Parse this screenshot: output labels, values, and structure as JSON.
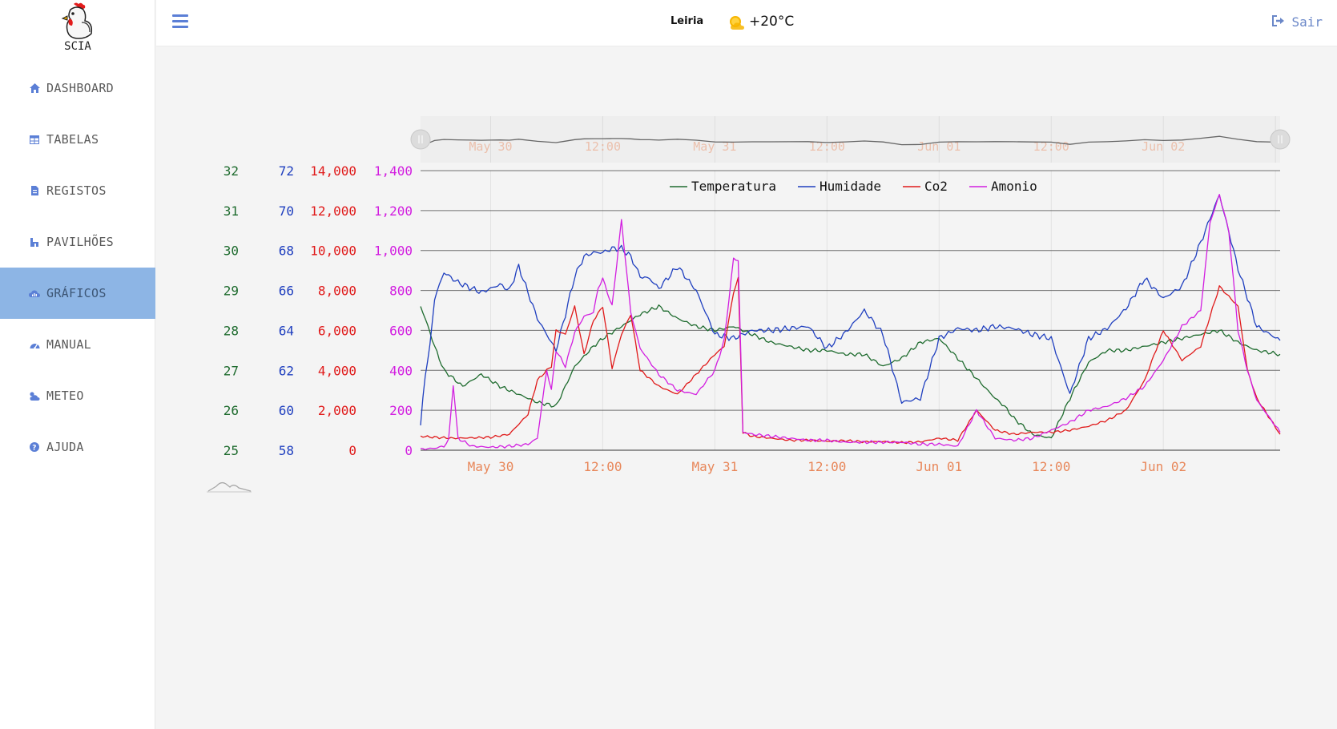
{
  "app": {
    "name": "SCIA"
  },
  "sidebar": {
    "items": [
      {
        "label": "DASHBOARD",
        "icon": "home-icon"
      },
      {
        "label": "TABELAS",
        "icon": "table-icon"
      },
      {
        "label": "REGISTOS",
        "icon": "records-icon"
      },
      {
        "label": "PAVILHÕES",
        "icon": "building-icon"
      },
      {
        "label": "GRÁFICOS",
        "icon": "cloud-chart-icon",
        "active": true
      },
      {
        "label": "MANUAL",
        "icon": "tachometer-icon"
      },
      {
        "label": "METEO",
        "icon": "weather-icon"
      },
      {
        "label": "AJUDA",
        "icon": "question-icon"
      }
    ]
  },
  "header": {
    "city": "Leiria",
    "temperature": "+20°C",
    "weather_icon": "sun-cloud-icon",
    "logout_label": "Sair"
  },
  "colors": {
    "accent": "#5b7fd6",
    "active_nav": "#8db5e5",
    "temperatura": "#1e6b2e",
    "humidade": "#1f3fbf",
    "co2": "#e01a1a",
    "amonio": "#d21ee0",
    "time_label": "#e8875a"
  },
  "chart_data": {
    "type": "line",
    "legend": [
      "Temperatura",
      "Humidade",
      "Co2",
      "Amonio"
    ],
    "legend_position": "top-center",
    "x_ticks": [
      "May 30",
      "12:00",
      "May 31",
      "12:00",
      "Jun 01",
      "12:00",
      "Jun 02"
    ],
    "x_range_hours": [
      -7.5,
      84.5
    ],
    "axes": [
      {
        "series": "Temperatura",
        "range": [
          25,
          32
        ],
        "ticks": [
          "25",
          "26",
          "27",
          "28",
          "29",
          "30",
          "31",
          "32"
        ]
      },
      {
        "series": "Humidade",
        "range": [
          58,
          72
        ],
        "ticks": [
          "58",
          "60",
          "62",
          "64",
          "66",
          "68",
          "70",
          "72"
        ]
      },
      {
        "series": "Co2",
        "range": [
          0,
          14000
        ],
        "ticks": [
          "0",
          "2,000",
          "4,000",
          "6,000",
          "8,000",
          "10,000",
          "12,000",
          "14,000"
        ]
      },
      {
        "series": "Amonio",
        "range": [
          0,
          1400
        ],
        "ticks": [
          "0",
          "200",
          "400",
          "600",
          "800",
          "1,000",
          "1,200",
          "1,400"
        ]
      }
    ],
    "series": [
      {
        "name": "Temperatura",
        "x": [
          -7.5,
          -7,
          -6,
          -5,
          -4,
          -3,
          -1,
          1,
          3,
          5,
          7,
          9,
          11,
          12,
          14,
          16,
          18,
          20,
          22,
          24,
          26,
          28,
          30,
          32,
          34,
          36,
          38,
          40,
          42,
          44,
          46,
          48,
          50,
          52,
          54,
          55,
          56,
          57,
          58,
          60,
          62,
          64,
          66,
          68,
          70,
          72,
          74,
          76,
          78,
          80,
          82,
          84.5
        ],
        "values": [
          28.6,
          28.3,
          27.6,
          27.0,
          26.8,
          26.6,
          26.9,
          26.6,
          26.4,
          26.2,
          26.1,
          27.1,
          27.6,
          27.8,
          28.1,
          28.4,
          28.6,
          28.3,
          28.1,
          28.0,
          28.1,
          27.9,
          27.7,
          27.6,
          27.5,
          27.5,
          27.4,
          27.4,
          27.1,
          27.3,
          27.7,
          27.8,
          27.3,
          26.8,
          26.3,
          26.1,
          25.8,
          25.6,
          25.4,
          25.3,
          26.3,
          27.2,
          27.5,
          27.5,
          27.6,
          27.7,
          27.8,
          27.9,
          28.0,
          27.7,
          27.5,
          27.4
        ]
      },
      {
        "name": "Humidade",
        "x": [
          -7.5,
          -7,
          -6.5,
          -6,
          -5,
          -3.5,
          -2,
          -1,
          0,
          1,
          2,
          3,
          5,
          7,
          8,
          9,
          10,
          11,
          12,
          13,
          14,
          15,
          16,
          17,
          18,
          20,
          22,
          24,
          26,
          28,
          30,
          32,
          34,
          36,
          38,
          40,
          42,
          44,
          46,
          48,
          50,
          52,
          54,
          56,
          58,
          60,
          62,
          64,
          66,
          68,
          70,
          72,
          74,
          76,
          78,
          80,
          82,
          84.5
        ],
        "values": [
          59.2,
          61.8,
          63.2,
          65.6,
          66.9,
          66.4,
          66.1,
          65.9,
          66.1,
          66.3,
          66.0,
          67.2,
          64.6,
          63.0,
          64.8,
          66.7,
          67.7,
          67.9,
          67.9,
          68.1,
          68.1,
          67.7,
          66.7,
          66.6,
          66.1,
          67.2,
          66.0,
          63.8,
          63.6,
          64.0,
          64.0,
          64.1,
          64.2,
          63.1,
          63.9,
          65.0,
          63.8,
          60.4,
          60.6,
          63.6,
          64.1,
          64.0,
          64.2,
          64.1,
          63.8,
          63.6,
          60.8,
          63.6,
          64.1,
          65.1,
          66.6,
          65.6,
          66.2,
          68.4,
          70.8,
          67.1,
          64.2,
          63.5
        ]
      },
      {
        "name": "Co2",
        "x": [
          -7.5,
          -6,
          -4,
          -2,
          0,
          2,
          4,
          5,
          6,
          6.5,
          7,
          8,
          9,
          10,
          11,
          12,
          13,
          14,
          15,
          16,
          18,
          20,
          22,
          24,
          25,
          26,
          26.5,
          27,
          28,
          30,
          32,
          34,
          36,
          38,
          40,
          42,
          44,
          46,
          48,
          50,
          52,
          54,
          56,
          58,
          60,
          62,
          64,
          66,
          68,
          70,
          72,
          74,
          76,
          78,
          80,
          81,
          82,
          84.5
        ],
        "values": [
          700,
          650,
          600,
          620,
          650,
          800,
          1800,
          3500,
          4000,
          4200,
          6000,
          5800,
          7200,
          4800,
          6500,
          7200,
          4100,
          5800,
          6800,
          4000,
          3200,
          2800,
          3800,
          4800,
          5200,
          7900,
          8600,
          900,
          700,
          600,
          500,
          500,
          450,
          480,
          420,
          430,
          380,
          420,
          600,
          500,
          2000,
          1000,
          800,
          900,
          900,
          1000,
          1200,
          1500,
          2000,
          3500,
          6000,
          4500,
          5200,
          8200,
          7200,
          4000,
          2600,
          800
        ]
      },
      {
        "name": "Amonio",
        "x": [
          -7.5,
          -6,
          -5,
          -4.5,
          -4,
          -3.5,
          -2,
          0,
          2,
          4,
          5,
          6,
          6.5,
          7,
          8,
          9,
          10,
          11,
          11.5,
          12,
          13,
          14,
          15,
          16,
          18,
          20,
          22,
          24,
          25,
          26,
          26.5,
          27,
          28,
          30,
          32,
          34,
          36,
          38,
          40,
          42,
          44,
          46,
          48,
          50,
          52,
          54,
          56,
          58,
          60,
          62,
          64,
          66,
          68,
          70,
          72,
          74,
          76,
          77,
          78,
          79,
          80,
          81,
          82,
          84.5
        ],
        "values": [
          5,
          10,
          20,
          50,
          330,
          60,
          20,
          15,
          20,
          30,
          60,
          400,
          300,
          500,
          420,
          590,
          670,
          690,
          810,
          860,
          720,
          1150,
          690,
          510,
          380,
          300,
          280,
          400,
          550,
          960,
          950,
          90,
          80,
          70,
          60,
          50,
          50,
          40,
          40,
          40,
          40,
          30,
          30,
          20,
          200,
          60,
          50,
          60,
          100,
          140,
          200,
          220,
          260,
          320,
          450,
          620,
          700,
          1140,
          1280,
          1100,
          600,
          400,
          250,
          90
        ]
      }
    ],
    "navigator_series": "Humidade"
  }
}
